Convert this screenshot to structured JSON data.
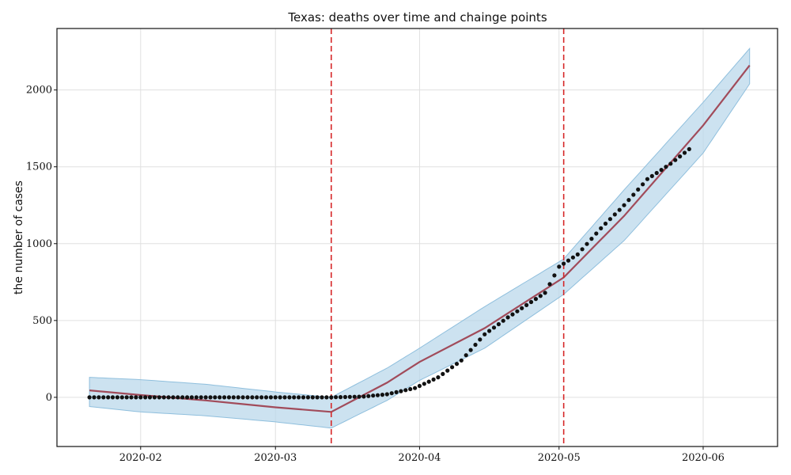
{
  "chart_data": {
    "type": "line",
    "title": "Texas: deaths over time and chainge points",
    "xlabel": "",
    "ylabel": "the number of cases",
    "xlim": [
      "2020-01-14",
      "2020-06-17"
    ],
    "ylim": [
      -320,
      2400
    ],
    "x_ticks": [
      "2020-02",
      "2020-03",
      "2020-04",
      "2020-05",
      "2020-06"
    ],
    "y_ticks": [
      0,
      500,
      1000,
      1500,
      2000
    ],
    "grid": true,
    "changepoints": [
      "2020-03-13",
      "2020-05-02"
    ],
    "trend": {
      "x": [
        "2020-01-21",
        "2020-02-01",
        "2020-02-15",
        "2020-03-01",
        "2020-03-13",
        "2020-03-25",
        "2020-04-01",
        "2020-04-15",
        "2020-05-02",
        "2020-05-15",
        "2020-06-01",
        "2020-06-11"
      ],
      "y": [
        45,
        15,
        -20,
        -65,
        -95,
        95,
        230,
        450,
        780,
        1180,
        1770,
        2160
      ]
    },
    "band": {
      "x": [
        "2020-01-21",
        "2020-02-01",
        "2020-02-15",
        "2020-03-01",
        "2020-03-13",
        "2020-03-25",
        "2020-04-01",
        "2020-04-15",
        "2020-05-02",
        "2020-05-15",
        "2020-06-01",
        "2020-06-11"
      ],
      "lower": [
        -60,
        -95,
        -120,
        -160,
        -200,
        -20,
        110,
        320,
        670,
        1020,
        1590,
        2040
      ],
      "upper": [
        130,
        115,
        85,
        35,
        0,
        190,
        320,
        590,
        900,
        1350,
        1920,
        2270
      ]
    },
    "observed": {
      "x": [
        "2020-01-21",
        "2020-02-01",
        "2020-02-15",
        "2020-03-01",
        "2020-03-13",
        "2020-03-20",
        "2020-03-25",
        "2020-03-31",
        "2020-04-05",
        "2020-04-10",
        "2020-04-15",
        "2020-04-20",
        "2020-04-25",
        "2020-04-28",
        "2020-05-01",
        "2020-05-05",
        "2020-05-10",
        "2020-05-15",
        "2020-05-20",
        "2020-05-25",
        "2020-05-29"
      ],
      "y": [
        0,
        0,
        0,
        0,
        0,
        5,
        20,
        60,
        130,
        240,
        410,
        520,
        620,
        680,
        850,
        930,
        1100,
        1250,
        1420,
        1520,
        1615
      ]
    }
  }
}
